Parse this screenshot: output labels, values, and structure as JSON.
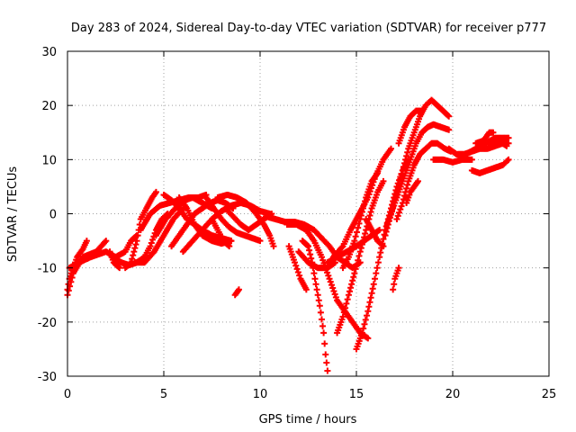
{
  "chart_data": {
    "type": "scatter",
    "title": "Day 283 of 2024, Sidereal Day-to-day VTEC variation (SDTVAR) for receiver p777",
    "xlabel": "GPS time / hours",
    "ylabel": "SDTVAR / TECUs",
    "xlim": [
      0,
      25
    ],
    "ylim": [
      -30,
      30
    ],
    "xticks": [
      "0",
      "5",
      "10",
      "15",
      "20",
      "25"
    ],
    "yticks": [
      "-30",
      "-20",
      "-10",
      "0",
      "10",
      "20",
      "30"
    ],
    "grid": true,
    "marker": "+",
    "color": "#ff0000",
    "tracks": [
      [
        [
          0.0,
          -14
        ],
        [
          0.1,
          -12
        ],
        [
          0.3,
          -10
        ],
        [
          0.5,
          -8
        ],
        [
          0.8,
          -6.5
        ],
        [
          1.0,
          -5
        ]
      ],
      [
        [
          0.0,
          -15
        ],
        [
          0.3,
          -11
        ],
        [
          0.8,
          -8
        ],
        [
          1.5,
          -7
        ],
        [
          2.0,
          -5
        ]
      ],
      [
        [
          0.1,
          -10
        ],
        [
          0.6,
          -9
        ],
        [
          1.2,
          -8
        ],
        [
          2.0,
          -7
        ],
        [
          2.5,
          -8
        ],
        [
          3.0,
          -7
        ],
        [
          3.3,
          -5
        ],
        [
          3.6,
          -4
        ]
      ],
      [
        [
          2.3,
          -8
        ],
        [
          2.8,
          -9
        ],
        [
          3.2,
          -9.5
        ],
        [
          3.6,
          -9
        ],
        [
          4.0,
          -8
        ],
        [
          4.3,
          -6
        ],
        [
          4.6,
          -3
        ],
        [
          4.9,
          -1
        ],
        [
          5.2,
          0
        ]
      ],
      [
        [
          2.2,
          -7
        ],
        [
          2.4,
          -9
        ],
        [
          2.7,
          -10
        ]
      ],
      [
        [
          3.0,
          -10
        ],
        [
          3.3,
          -9
        ],
        [
          3.6,
          -5
        ],
        [
          3.8,
          -1
        ],
        [
          4.1,
          1
        ],
        [
          4.4,
          3
        ],
        [
          4.6,
          4
        ]
      ],
      [
        [
          3.5,
          -9
        ],
        [
          4.0,
          -9
        ],
        [
          4.5,
          -7
        ],
        [
          5.0,
          -4
        ],
        [
          5.5,
          -1
        ],
        [
          6.0,
          1
        ]
      ],
      [
        [
          3.8,
          -3
        ],
        [
          4.3,
          0
        ],
        [
          4.8,
          1.5
        ],
        [
          5.3,
          2
        ],
        [
          5.8,
          2.5
        ],
        [
          6.3,
          3
        ],
        [
          6.8,
          3
        ],
        [
          7.2,
          3.5
        ]
      ],
      [
        [
          4.6,
          -4
        ],
        [
          5.1,
          -1
        ],
        [
          5.6,
          1
        ],
        [
          6.1,
          2.5
        ],
        [
          6.5,
          3
        ],
        [
          7.0,
          2
        ],
        [
          7.5,
          1
        ]
      ],
      [
        [
          5.0,
          3.5
        ],
        [
          5.4,
          2.5
        ],
        [
          5.8,
          1
        ],
        [
          6.2,
          -1
        ],
        [
          6.6,
          -2
        ],
        [
          7.0,
          -3
        ],
        [
          7.5,
          -4
        ],
        [
          8.0,
          -4.5
        ],
        [
          8.5,
          -5
        ]
      ],
      [
        [
          5.8,
          3
        ],
        [
          6.2,
          1
        ],
        [
          6.6,
          -2
        ],
        [
          7.0,
          -4
        ],
        [
          7.5,
          -5
        ],
        [
          8.0,
          -5.5
        ],
        [
          8.5,
          -5
        ]
      ],
      [
        [
          5.4,
          -6
        ],
        [
          5.8,
          -4
        ],
        [
          6.2,
          -2
        ],
        [
          6.6,
          0
        ],
        [
          7.0,
          1
        ],
        [
          7.4,
          2
        ],
        [
          7.8,
          2.5
        ],
        [
          8.2,
          2
        ],
        [
          8.6,
          1
        ]
      ],
      [
        [
          6.0,
          -7
        ],
        [
          6.5,
          -5
        ],
        [
          7.0,
          -3
        ],
        [
          7.5,
          -1
        ],
        [
          8.0,
          0.5
        ],
        [
          8.5,
          1.5
        ],
        [
          9.0,
          2
        ],
        [
          9.5,
          1.5
        ],
        [
          10.0,
          0.5
        ],
        [
          10.5,
          0
        ]
      ],
      [
        [
          7.2,
          3
        ],
        [
          7.6,
          1
        ],
        [
          8.0,
          -1
        ],
        [
          8.4,
          -2.5
        ],
        [
          8.8,
          -3.5
        ],
        [
          9.2,
          -4
        ],
        [
          9.6,
          -4.5
        ],
        [
          10.0,
          -5
        ]
      ],
      [
        [
          7.5,
          -1
        ],
        [
          7.8,
          -3
        ],
        [
          8.1,
          -5
        ],
        [
          8.4,
          -6
        ]
      ],
      [
        [
          7.8,
          3
        ],
        [
          8.3,
          3.5
        ],
        [
          8.8,
          3
        ],
        [
          9.3,
          2
        ],
        [
          9.8,
          0
        ],
        [
          10.2,
          -2
        ],
        [
          10.5,
          -4
        ],
        [
          10.7,
          -6
        ]
      ],
      [
        [
          8.2,
          1
        ],
        [
          8.6,
          -0.5
        ],
        [
          9.0,
          -2
        ],
        [
          9.4,
          -3
        ],
        [
          9.8,
          -2
        ],
        [
          10.2,
          -1
        ],
        [
          10.6,
          0
        ]
      ],
      [
        [
          8.7,
          -15
        ],
        [
          8.9,
          -14
        ]
      ],
      [
        [
          10.3,
          -0.5
        ],
        [
          10.8,
          -1
        ],
        [
          11.3,
          -1.5
        ],
        [
          11.8,
          -1.5
        ],
        [
          12.3,
          -2
        ],
        [
          12.8,
          -3
        ],
        [
          13.2,
          -4.5
        ],
        [
          13.6,
          -6
        ],
        [
          14.0,
          -8
        ],
        [
          14.4,
          -9
        ],
        [
          14.8,
          -10
        ],
        [
          15.2,
          -9
        ]
      ],
      [
        [
          11.4,
          -2
        ],
        [
          11.9,
          -2
        ],
        [
          12.4,
          -3
        ],
        [
          12.8,
          -5
        ],
        [
          13.2,
          -8
        ],
        [
          13.6,
          -12
        ],
        [
          14.0,
          -16
        ],
        [
          14.4,
          -18
        ],
        [
          14.8,
          -20
        ],
        [
          15.2,
          -22
        ],
        [
          15.6,
          -23
        ]
      ],
      [
        [
          11.5,
          -6
        ],
        [
          11.8,
          -9
        ],
        [
          12.1,
          -12
        ],
        [
          12.4,
          -14
        ]
      ],
      [
        [
          12.0,
          -7
        ],
        [
          12.5,
          -9
        ],
        [
          13.0,
          -10
        ],
        [
          13.5,
          -10
        ],
        [
          13.9,
          -9
        ]
      ],
      [
        [
          12.2,
          -5
        ],
        [
          12.5,
          -6
        ],
        [
          12.7,
          -9
        ],
        [
          12.9,
          -13
        ],
        [
          13.1,
          -17
        ],
        [
          13.3,
          -22
        ],
        [
          13.4,
          -26
        ],
        [
          13.5,
          -29
        ]
      ],
      [
        [
          13.5,
          -9
        ],
        [
          14.0,
          -8
        ],
        [
          14.5,
          -7
        ],
        [
          15.0,
          -6
        ],
        [
          15.4,
          -5
        ],
        [
          15.8,
          -4
        ],
        [
          16.2,
          -3
        ]
      ],
      [
        [
          13.8,
          -8
        ],
        [
          14.3,
          -6
        ],
        [
          14.7,
          -3
        ],
        [
          15.0,
          -1
        ],
        [
          15.3,
          1
        ],
        [
          15.6,
          3
        ],
        [
          16.0,
          7
        ],
        [
          16.4,
          10
        ],
        [
          16.8,
          12
        ]
      ],
      [
        [
          14.0,
          -22
        ],
        [
          14.3,
          -19
        ],
        [
          14.6,
          -15
        ],
        [
          14.9,
          -11
        ],
        [
          15.2,
          -7
        ],
        [
          15.5,
          -3
        ],
        [
          15.8,
          1
        ],
        [
          16.1,
          4
        ],
        [
          16.4,
          6
        ]
      ],
      [
        [
          14.3,
          -10
        ],
        [
          14.6,
          -8
        ],
        [
          14.9,
          -5
        ],
        [
          15.2,
          -1
        ],
        [
          15.5,
          3
        ],
        [
          15.8,
          6
        ],
        [
          16.1,
          7.5
        ]
      ],
      [
        [
          15.0,
          -25
        ],
        [
          15.3,
          -22
        ],
        [
          15.6,
          -18
        ],
        [
          15.9,
          -13
        ],
        [
          16.2,
          -8
        ],
        [
          16.5,
          -3
        ],
        [
          16.8,
          1
        ],
        [
          17.1,
          5
        ],
        [
          17.4,
          8
        ],
        [
          17.7,
          10
        ]
      ],
      [
        [
          15.5,
          -1
        ],
        [
          15.8,
          -3
        ],
        [
          16.1,
          -5
        ],
        [
          16.4,
          -6
        ]
      ],
      [
        [
          16.9,
          -14
        ],
        [
          17.0,
          -12
        ],
        [
          17.2,
          -10
        ]
      ],
      [
        [
          16.5,
          -4
        ],
        [
          16.8,
          0
        ],
        [
          17.1,
          4
        ],
        [
          17.4,
          8
        ],
        [
          17.7,
          12
        ],
        [
          18.0,
          15
        ],
        [
          18.3,
          18
        ],
        [
          18.6,
          20
        ],
        [
          18.9,
          21
        ],
        [
          19.2,
          20
        ],
        [
          19.5,
          19
        ],
        [
          19.8,
          18
        ]
      ],
      [
        [
          16.6,
          -2
        ],
        [
          16.9,
          1
        ],
        [
          17.2,
          4
        ],
        [
          17.5,
          7
        ],
        [
          17.8,
          10
        ],
        [
          18.1,
          13
        ],
        [
          18.4,
          15
        ],
        [
          18.7,
          16
        ],
        [
          19.0,
          16.5
        ],
        [
          19.4,
          16
        ],
        [
          19.8,
          15.5
        ]
      ],
      [
        [
          17.1,
          -1
        ],
        [
          17.4,
          2
        ],
        [
          17.7,
          6
        ],
        [
          18.0,
          9
        ],
        [
          18.3,
          11
        ],
        [
          18.6,
          12
        ],
        [
          18.9,
          13
        ],
        [
          19.2,
          13
        ],
        [
          19.6,
          12
        ],
        [
          19.9,
          11.5
        ]
      ],
      [
        [
          17.2,
          13
        ],
        [
          17.5,
          16
        ],
        [
          17.8,
          18
        ],
        [
          18.1,
          19
        ],
        [
          18.4,
          19
        ]
      ],
      [
        [
          17.6,
          2
        ],
        [
          17.8,
          4
        ],
        [
          18.0,
          5
        ],
        [
          18.2,
          6
        ]
      ],
      [
        [
          19.0,
          10
        ],
        [
          19.5,
          10
        ],
        [
          20.0,
          9.5
        ],
        [
          20.5,
          10
        ],
        [
          21.0,
          10
        ]
      ],
      [
        [
          19.8,
          12
        ],
        [
          20.2,
          11
        ],
        [
          20.6,
          11
        ],
        [
          21.0,
          11.5
        ],
        [
          21.4,
          12
        ],
        [
          21.8,
          12
        ],
        [
          22.2,
          12.5
        ],
        [
          22.6,
          13
        ],
        [
          22.9,
          13
        ]
      ],
      [
        [
          20.3,
          11
        ],
        [
          20.7,
          11
        ],
        [
          21.2,
          12
        ],
        [
          21.7,
          13
        ],
        [
          22.2,
          14
        ],
        [
          22.6,
          14
        ],
        [
          22.9,
          14
        ]
      ],
      [
        [
          21.0,
          8
        ],
        [
          21.4,
          7.5
        ],
        [
          21.8,
          8
        ],
        [
          22.2,
          8.5
        ],
        [
          22.6,
          9
        ],
        [
          22.9,
          10
        ]
      ],
      [
        [
          21.7,
          14
        ],
        [
          21.9,
          15
        ],
        [
          22.1,
          15
        ]
      ],
      [
        [
          21.2,
          13
        ],
        [
          21.6,
          13.5
        ],
        [
          22.0,
          13
        ],
        [
          22.4,
          13.5
        ],
        [
          22.8,
          12.5
        ]
      ]
    ]
  }
}
